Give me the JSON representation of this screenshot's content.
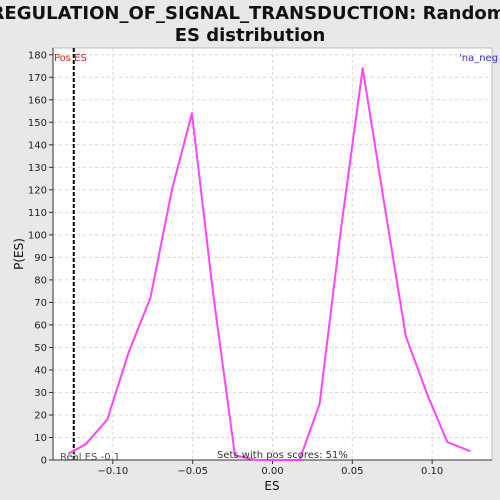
{
  "chart_data": {
    "type": "line",
    "title": "REGULATION_OF_SIGNAL_TRANSDUCTION: Random ES distribution",
    "title_lines": [
      "REGULATION_OF_SIGNAL_TRANSDUCTION: Random",
      "ES distribution"
    ],
    "xlabel": "ES",
    "ylabel": "P(ES)",
    "xlim": [
      -0.1375,
      0.1375
    ],
    "ylim": [
      0,
      183
    ],
    "x_ticks": [
      -0.1,
      -0.05,
      0.0,
      0.05,
      0.1
    ],
    "x_tick_labels": [
      "−0.10",
      "−0.05",
      "0.00",
      "0.05",
      "0.10"
    ],
    "y_ticks": [
      0,
      10,
      20,
      30,
      40,
      50,
      60,
      70,
      80,
      90,
      100,
      110,
      120,
      130,
      140,
      150,
      160,
      170,
      180
    ],
    "y_tick_labels": [
      "0",
      "10",
      "20",
      "30",
      "40",
      "50",
      "60",
      "70",
      "80",
      "90",
      "100",
      "110",
      "120",
      "130",
      "140",
      "150",
      "160",
      "170",
      "180"
    ],
    "grid": true,
    "series": [
      {
        "color": "#ff44ff",
        "x": [
          -0.1275,
          -0.117,
          -0.1035,
          -0.09,
          -0.0765,
          -0.063,
          -0.0505,
          -0.037,
          -0.0235,
          -0.01,
          0.0035,
          0.017,
          0.0295,
          0.043,
          0.0565,
          0.07,
          0.0835,
          0.097,
          0.1095,
          0.1235
        ],
        "y": [
          3,
          7,
          18,
          48,
          72,
          120,
          154,
          73,
          2,
          0,
          0,
          0,
          25,
          103,
          174,
          114,
          55,
          29,
          8,
          4
        ]
      }
    ],
    "real_es_line": {
      "x": -0.1245,
      "color": "#000000"
    },
    "annotations": {
      "pos_es": "Pos ES",
      "neg_label": "'na_neg",
      "real_es": "Real ES -0.1",
      "sets_with_pos": "Sets with pos scores: 51%"
    },
    "colors": {
      "pos": "#dd2222",
      "neg": "#3333cc",
      "line": "#ff44ff",
      "background": "#e8e8e8",
      "plot_bg": "#ffffff"
    }
  }
}
